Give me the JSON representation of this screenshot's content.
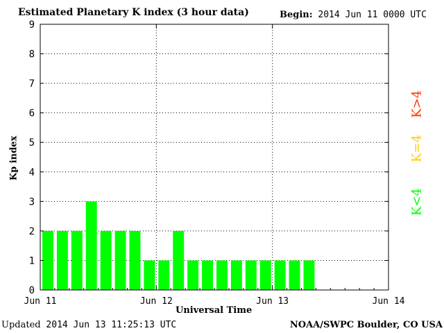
{
  "header": {
    "title": "Estimated Planetary K index (3 hour data)",
    "begin_label": "Begin:",
    "begin_value": "2014 Jun 11 0000 UTC"
  },
  "footer": {
    "updated_label": "Updated",
    "updated_value": "2014 Jun 13 11:25:13 UTC",
    "credit": "NOAA/SWPC Boulder, CO USA"
  },
  "legend": {
    "low": "K<4",
    "equal": "K=4",
    "high": "K>4"
  },
  "colors": {
    "low": "#00ff00",
    "equal": "#ffcc00",
    "high": "#ff3300",
    "grid": "#000000"
  },
  "chart_data": {
    "type": "bar",
    "title": "Estimated Planetary K index (3 hour data)",
    "xlabel": "Universal Time",
    "ylabel": "Kp index",
    "ylim": [
      0,
      9
    ],
    "yticks": [
      "0",
      "1",
      "2",
      "3",
      "4",
      "5",
      "6",
      "7",
      "8",
      "9"
    ],
    "xticks": [
      "Jun 11",
      "Jun 12",
      "Jun 13",
      "Jun 14"
    ],
    "bins_per_day": 8,
    "days": 3,
    "grid": "dotted",
    "values": [
      2,
      2,
      2,
      3,
      2,
      2,
      2,
      1,
      1,
      2,
      1,
      1,
      1,
      1,
      1,
      1,
      1,
      1,
      1
    ]
  }
}
